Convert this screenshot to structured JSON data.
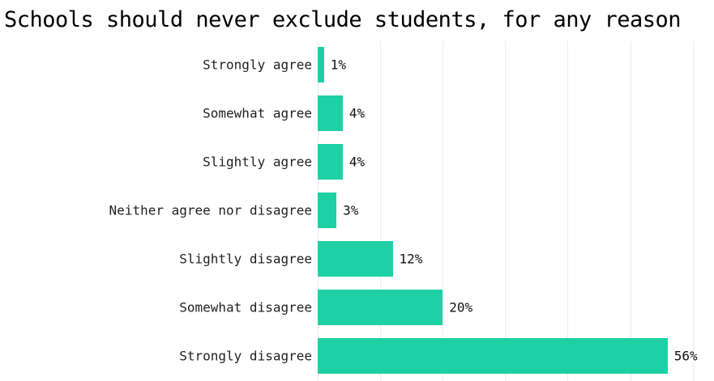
{
  "title": "Schools should never exclude students, for any reason",
  "colors": {
    "bar": "#1fd0a5",
    "grid": "#ebebf1",
    "title_text": "#000000",
    "label_text": "#1f1f1f"
  },
  "chart_data": {
    "type": "bar",
    "orientation": "horizontal",
    "title": "Schools should never exclude students, for any reason",
    "categories": [
      "Strongly agree",
      "Somewhat agree",
      "Slightly agree",
      "Neither agree nor disagree",
      "Slightly disagree",
      "Somewhat disagree",
      "Strongly disagree"
    ],
    "values": [
      1,
      4,
      4,
      3,
      12,
      20,
      56
    ],
    "value_labels": [
      "1%",
      "4%",
      "4%",
      "3%",
      "12%",
      "20%",
      "56%"
    ],
    "xlabel": "",
    "ylabel": "",
    "xlim": [
      0,
      63.5
    ],
    "x_gridlines_percent": [
      10,
      20,
      30,
      40,
      50,
      60
    ],
    "grid": "vertical-only",
    "legend": "none"
  }
}
